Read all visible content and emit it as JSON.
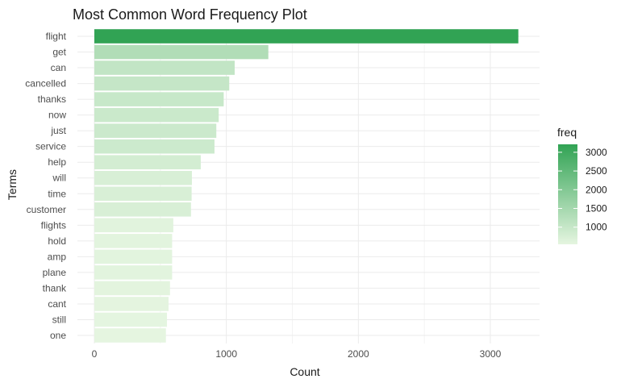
{
  "chart_data": {
    "type": "bar",
    "orientation": "horizontal",
    "title": "Most Common Word Frequency Plot",
    "xlabel": "Count",
    "ylabel": "Terms",
    "xlim": [
      0,
      3320
    ],
    "x_ticks": [
      0,
      1000,
      2000,
      3000
    ],
    "grid": true,
    "categories": [
      "flight",
      "get",
      "can",
      "cancelled",
      "thanks",
      "now",
      "just",
      "service",
      "help",
      "will",
      "time",
      "customer",
      "flights",
      "hold",
      "amp",
      "plane",
      "thank",
      "cant",
      "still",
      "one"
    ],
    "values": [
      3212,
      1318,
      1063,
      1022,
      980,
      942,
      924,
      910,
      806,
      739,
      737,
      732,
      598,
      589,
      589,
      589,
      573,
      562,
      550,
      542
    ],
    "legend": {
      "title": "freq",
      "position": "right",
      "ticks": [
        1000,
        1500,
        2000,
        2500,
        3000
      ],
      "range": [
        542,
        3212
      ],
      "color_low": "#e5f5e0",
      "color_high": "#31a354"
    }
  }
}
